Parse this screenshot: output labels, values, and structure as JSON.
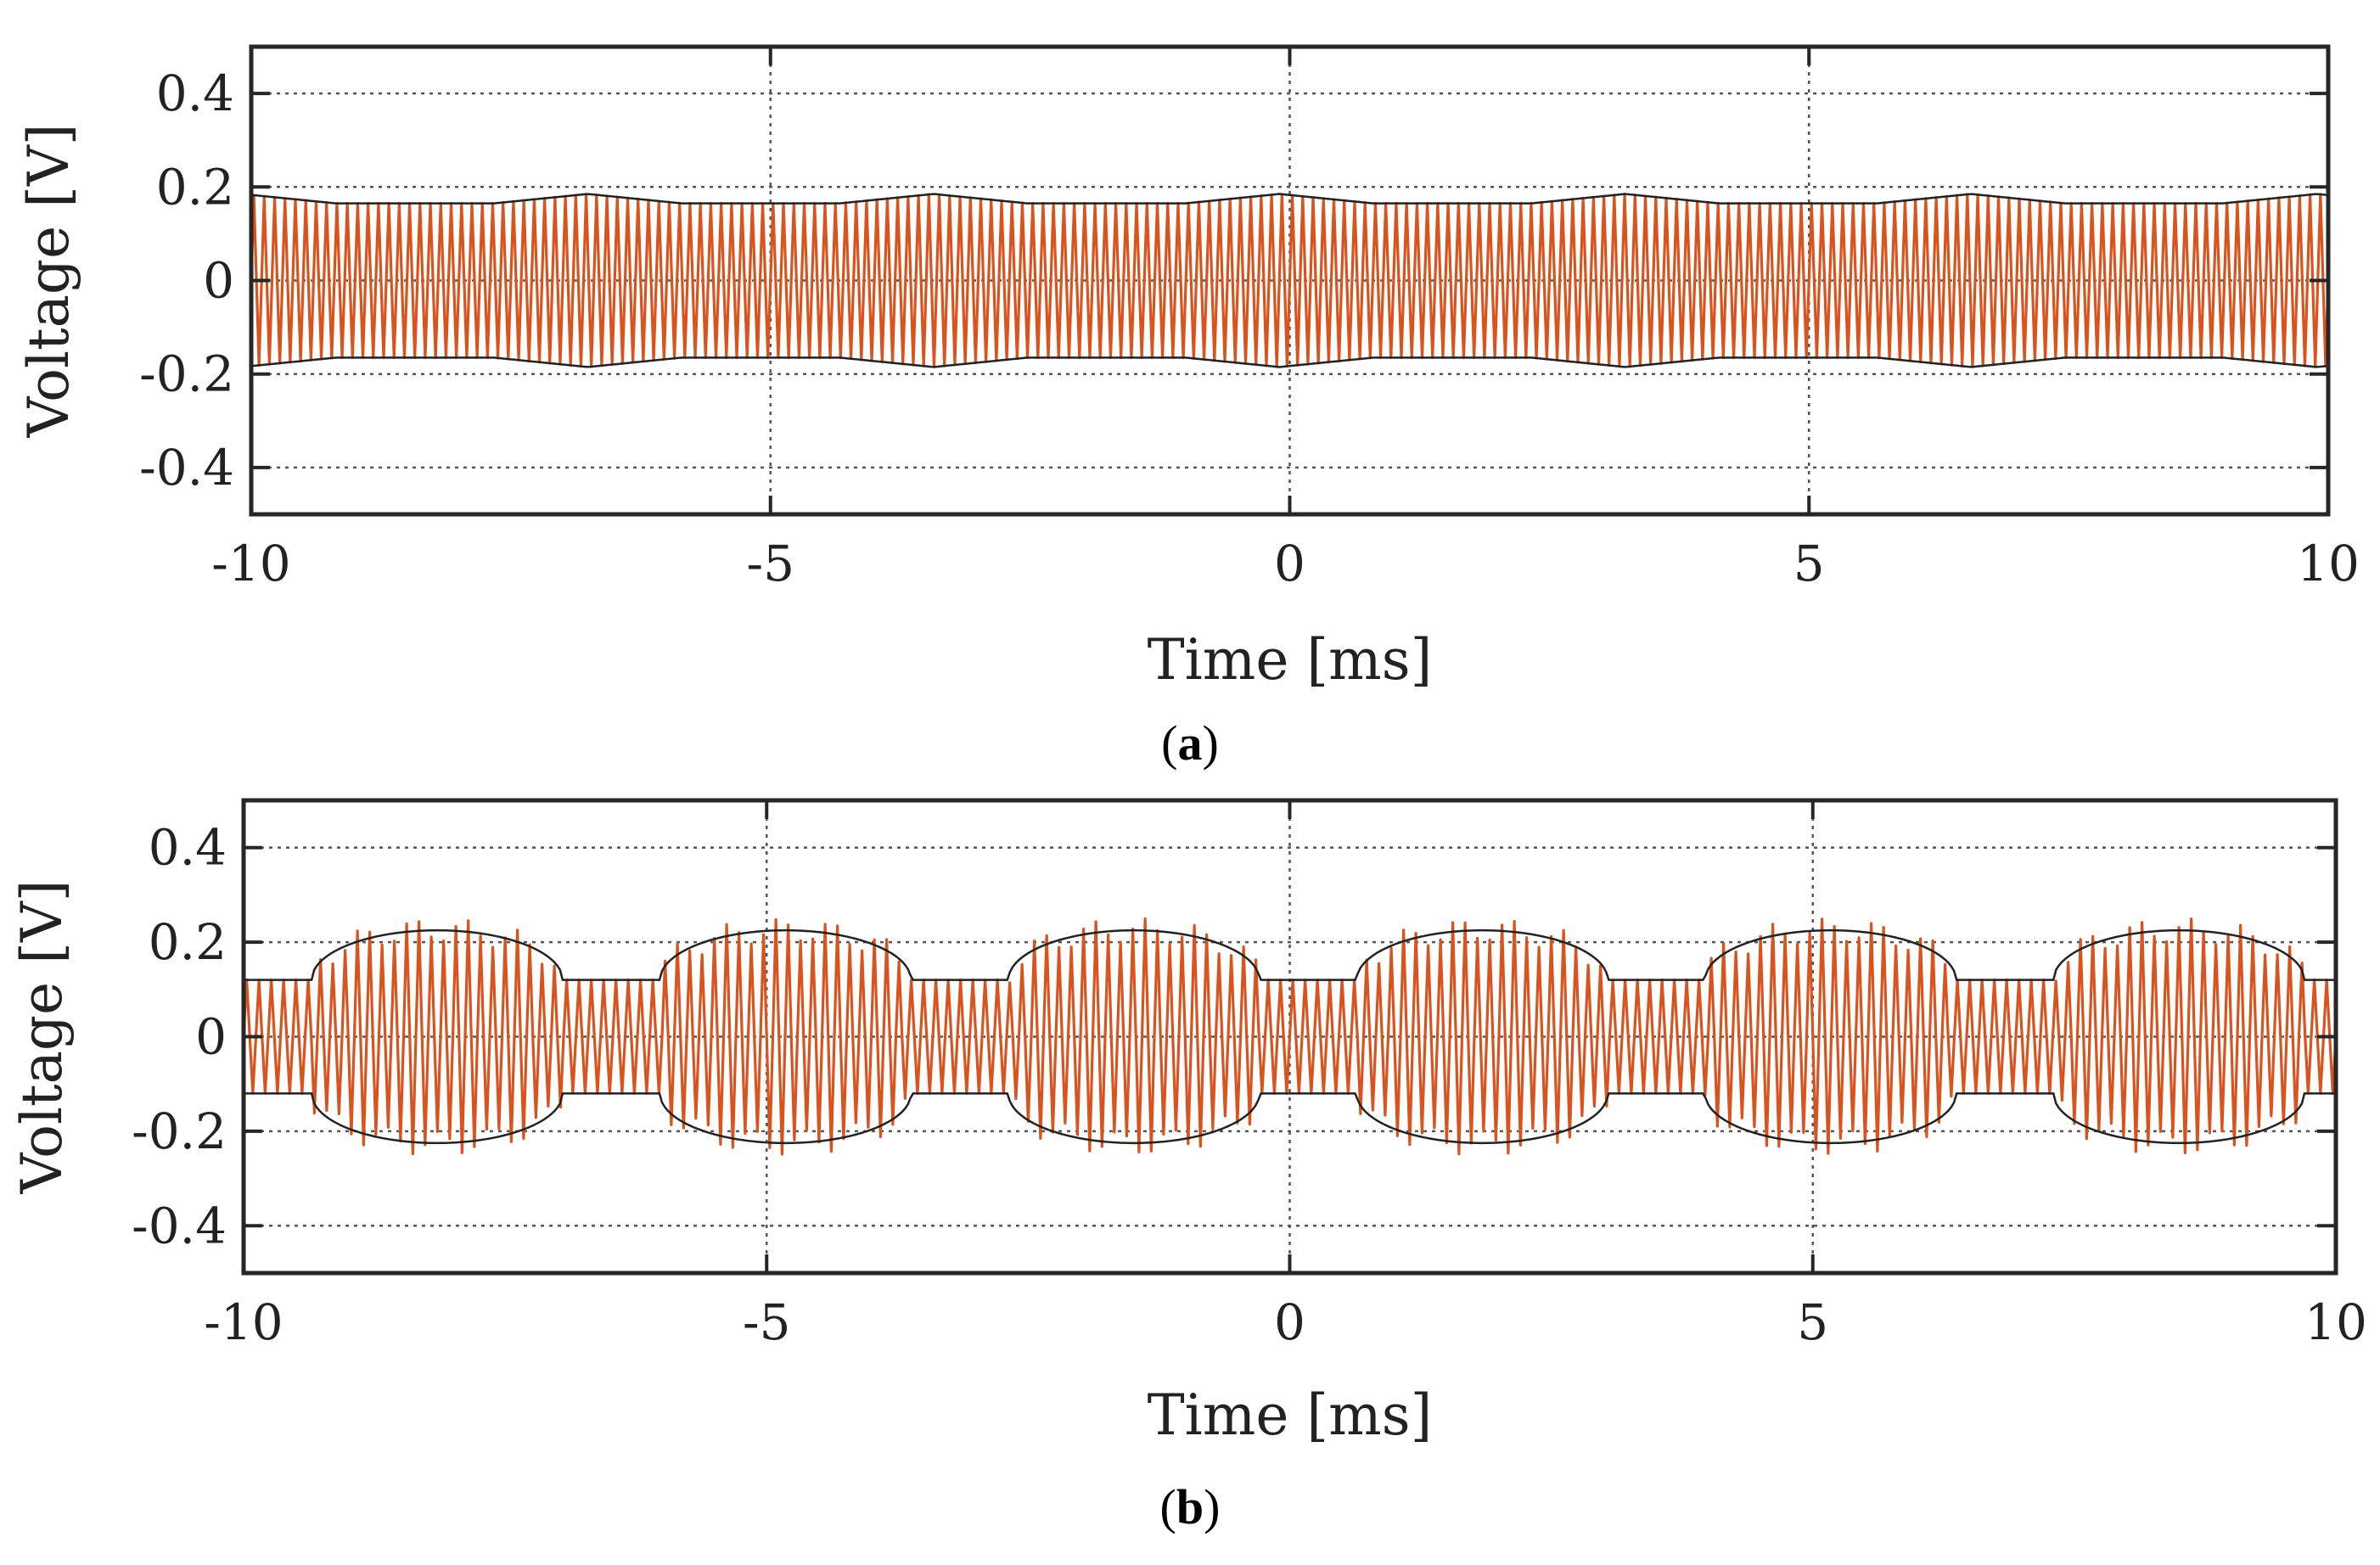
{
  "chart_data": [
    {
      "id": "a",
      "type": "line",
      "caption": {
        "open": "(",
        "letter": "a",
        "close": ")"
      },
      "xlabel": "Time [ms]",
      "ylabel": "Voltage [V]",
      "xlim": [
        -10,
        10
      ],
      "ylim": [
        -0.5,
        0.5
      ],
      "xticks": [
        -10,
        -5,
        0,
        5,
        10
      ],
      "xtick_labels": [
        "-10",
        "-5",
        "0",
        "5",
        "10"
      ],
      "yticks": [
        0.4,
        0.2,
        0,
        -0.2,
        -0.4
      ],
      "ytick_labels": [
        "0.4",
        "0.2",
        "0",
        "-0.2",
        "-0.4"
      ],
      "grid": true,
      "series": [
        {
          "name": "signal",
          "color": "#d9531e",
          "kind": "carrier",
          "cycles": 200,
          "envelope_base": 0.165,
          "envelope_peak": 0.185,
          "envelope_period_ms": 3.33,
          "envelope_phase_ms": -0.1
        },
        {
          "name": "envelope",
          "color": "#222222",
          "kind": "envelope",
          "envelope_base": 0.165,
          "envelope_peak": 0.185,
          "envelope_period_ms": 3.33,
          "envelope_phase_ms": -0.1
        }
      ]
    },
    {
      "id": "b",
      "type": "line",
      "caption": {
        "open": "(",
        "letter": "b",
        "close": ")"
      },
      "xlabel": "Time [ms]",
      "ylabel": "Voltage [V]",
      "xlim": [
        -10,
        10
      ],
      "ylim": [
        -0.5,
        0.5
      ],
      "xticks": [
        -10,
        -5,
        0,
        5,
        10
      ],
      "xtick_labels": [
        "-10",
        "-5",
        "0",
        "5",
        "10"
      ],
      "yticks": [
        0.4,
        0.2,
        0,
        -0.2,
        -0.4
      ],
      "ytick_labels": [
        "0.4",
        "0.2",
        "0",
        "-0.2",
        "-0.4"
      ],
      "grid": true,
      "series": [
        {
          "name": "signal",
          "color": "#d9531e",
          "kind": "carrier",
          "cycles": 170,
          "envelope_low": 0.12,
          "envelope_high": 0.225,
          "envelope_period_ms": 3.33,
          "envelope_center_ms": -8.15,
          "envelope_halfwidth_ms": 1.2,
          "overshoot": 0.025
        },
        {
          "name": "envelope",
          "color": "#222222",
          "kind": "envelope",
          "envelope_low": 0.12,
          "envelope_high": 0.225,
          "envelope_period_ms": 3.33,
          "envelope_center_ms": -8.15,
          "envelope_halfwidth_ms": 1.2
        }
      ]
    }
  ]
}
